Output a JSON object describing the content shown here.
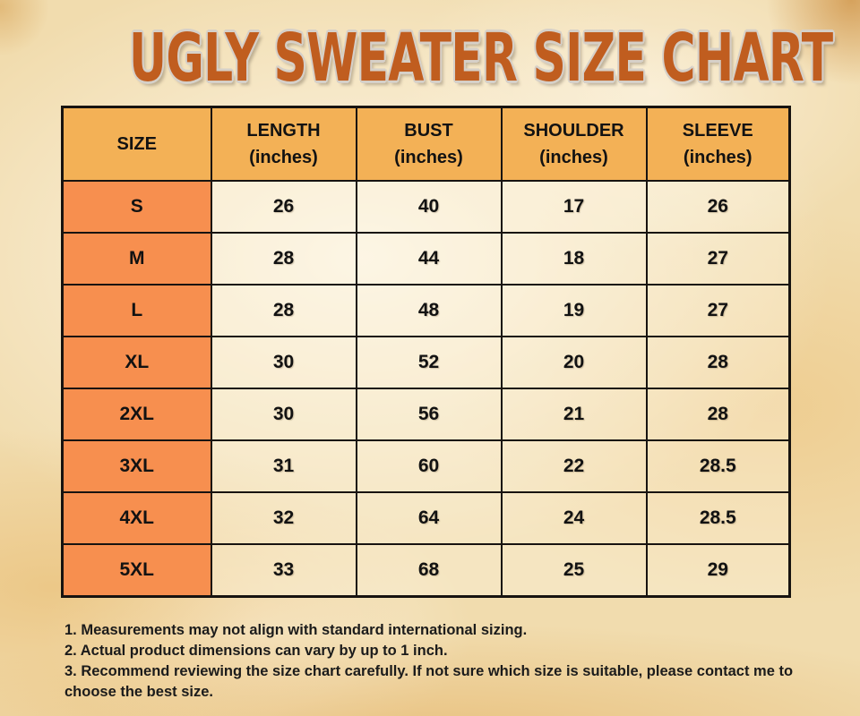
{
  "page": {
    "title": "UGLY SWEATER SIZE CHART"
  },
  "table": {
    "headers": [
      {
        "label": "SIZE",
        "unit": ""
      },
      {
        "label": "LENGTH",
        "unit": "(inches)"
      },
      {
        "label": "BUST",
        "unit": "(inches)"
      },
      {
        "label": "SHOULDER",
        "unit": "(inches)"
      },
      {
        "label": "SLEEVE",
        "unit": "(inches)"
      }
    ]
  },
  "footnotes": [
    "1. Measurements may not align with standard international sizing.",
    "2. Actual product dimensions can vary by up to 1 inch.",
    "3. Recommend reviewing the size chart carefully. If not sure which size is suitable, please contact me to choose the best size."
  ],
  "colors": {
    "title_text": "#c05d1f",
    "title_outline": "#d6d0c8",
    "header_bg": "#f3b156",
    "size_column_bg": "#f78f4f",
    "cell_bg": "#f7e8c6",
    "border": "#171310",
    "background_parchment": "#f1dcae",
    "body_text": "#1b1b1b"
  },
  "chart_data": {
    "type": "table",
    "title": "UGLY SWEATER SIZE CHART",
    "columns": [
      "SIZE",
      "LENGTH (inches)",
      "BUST (inches)",
      "SHOULDER (inches)",
      "SLEEVE (inches)"
    ],
    "rows": [
      [
        "S",
        26,
        40,
        17,
        26
      ],
      [
        "M",
        28,
        44,
        18,
        27
      ],
      [
        "L",
        28,
        48,
        19,
        27
      ],
      [
        "XL",
        30,
        52,
        20,
        28
      ],
      [
        "2XL",
        30,
        56,
        21,
        28
      ],
      [
        "3XL",
        31,
        60,
        22,
        28.5
      ],
      [
        "4XL",
        32,
        64,
        24,
        28.5
      ],
      [
        "5XL",
        33,
        68,
        25,
        29
      ]
    ],
    "notes": [
      "1. Measurements may not align with standard international sizing.",
      "2. Actual product dimensions can vary by up to 1 inch.",
      "3. Recommend reviewing the size chart carefully. If not sure which size is suitable, please contact me to choose the best size."
    ]
  }
}
